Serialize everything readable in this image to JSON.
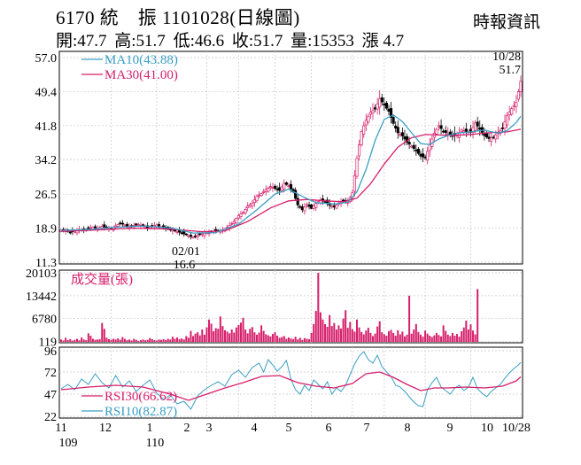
{
  "header": {
    "title": "6170 統　振 1101028(日線圖)",
    "source": "時報資訊",
    "quote": {
      "open": "開:47.7",
      "high": "高:51.7",
      "low": "低:46.6",
      "close": "收:51.7",
      "volume": "量:15353",
      "change": "漲 4.7"
    }
  },
  "chart_data": [
    {
      "type": "line",
      "panel": "price",
      "ylim": [
        11.3,
        57.0
      ],
      "yticks": [
        "57.0",
        "49.4",
        "41.8",
        "34.2",
        "26.5",
        "18.9",
        "11.3"
      ],
      "series": [
        {
          "name": "MA10(43.88)",
          "color": "#3a9fc4"
        },
        {
          "name": "MA30(41.00)",
          "color": "#d61f6b"
        }
      ],
      "annotations": {
        "high_date": "10/28",
        "high_value": "51.7",
        "low_date": "02/01",
        "low_value": "16.6"
      },
      "close": [
        [
          0,
          18.5
        ],
        [
          2,
          18.3
        ],
        [
          4,
          18.0
        ],
        [
          6,
          18.2
        ],
        [
          8,
          18.6
        ],
        [
          10,
          18.4
        ],
        [
          12,
          18.9
        ],
        [
          14,
          19.1
        ],
        [
          16,
          18.8
        ],
        [
          18,
          19.3
        ],
        [
          20,
          19.0
        ],
        [
          22,
          18.7
        ],
        [
          24,
          19.4
        ],
        [
          26,
          20.0
        ],
        [
          28,
          19.6
        ],
        [
          30,
          19.2
        ],
        [
          32,
          19.5
        ],
        [
          34,
          19.7
        ],
        [
          36,
          19.4
        ],
        [
          38,
          19.0
        ],
        [
          40,
          19.3
        ],
        [
          42,
          19.6
        ],
        [
          44,
          19.2
        ],
        [
          46,
          18.8
        ],
        [
          48,
          18.6
        ],
        [
          50,
          18.3
        ],
        [
          52,
          18.0
        ],
        [
          54,
          17.6
        ],
        [
          56,
          17.2
        ],
        [
          58,
          16.9
        ],
        [
          60,
          17.3
        ],
        [
          62,
          17.6
        ],
        [
          64,
          17.9
        ],
        [
          66,
          18.1
        ],
        [
          68,
          18.4
        ],
        [
          70,
          18.3
        ],
        [
          72,
          18.7
        ],
        [
          74,
          19.5
        ],
        [
          76,
          20.4
        ],
        [
          78,
          21.7
        ],
        [
          80,
          22.4
        ],
        [
          82,
          23.8
        ],
        [
          84,
          24.5
        ],
        [
          86,
          26.0
        ],
        [
          88,
          26.6
        ],
        [
          90,
          27.5
        ],
        [
          92,
          28.2
        ],
        [
          94,
          27.8
        ],
        [
          96,
          27.3
        ],
        [
          98,
          28.9
        ],
        [
          100,
          28.4
        ],
        [
          102,
          27.0
        ],
        [
          104,
          24.1
        ],
        [
          106,
          23.0
        ],
        [
          108,
          24.2
        ],
        [
          110,
          23.3
        ],
        [
          112,
          24.4
        ],
        [
          114,
          25.2
        ],
        [
          116,
          24.8
        ],
        [
          118,
          24.0
        ],
        [
          120,
          23.6
        ],
        [
          122,
          24.5
        ],
        [
          124,
          25.1
        ],
        [
          126,
          24.7
        ],
        [
          128,
          26.8
        ],
        [
          130,
          34.5
        ],
        [
          132,
          40.5
        ],
        [
          134,
          43.0
        ],
        [
          136,
          44.8
        ],
        [
          138,
          45.5
        ],
        [
          140,
          47.8
        ],
        [
          142,
          46.4
        ],
        [
          144,
          45.0
        ],
        [
          146,
          42.3
        ],
        [
          148,
          40.2
        ],
        [
          150,
          39.5
        ],
        [
          152,
          38.1
        ],
        [
          154,
          37.2
        ],
        [
          156,
          36.2
        ],
        [
          158,
          35.0
        ],
        [
          160,
          34.6
        ],
        [
          162,
          37.5
        ],
        [
          164,
          40.1
        ],
        [
          166,
          41.8
        ],
        [
          168,
          40.5
        ],
        [
          170,
          40.0
        ],
        [
          172,
          39.5
        ],
        [
          174,
          39.7
        ],
        [
          176,
          40.8
        ],
        [
          178,
          40.5
        ],
        [
          180,
          40.3
        ],
        [
          182,
          42.4
        ],
        [
          184,
          41.0
        ],
        [
          186,
          39.6
        ],
        [
          188,
          38.9
        ],
        [
          190,
          39.2
        ],
        [
          192,
          40.2
        ],
        [
          194,
          41.2
        ],
        [
          196,
          44.0
        ],
        [
          198,
          45.6
        ],
        [
          200,
          47.0
        ],
        [
          202,
          51.7
        ]
      ],
      "ma10": [
        [
          0,
          18.4
        ],
        [
          12,
          18.6
        ],
        [
          24,
          19.1
        ],
        [
          36,
          19.4
        ],
        [
          48,
          19.0
        ],
        [
          58,
          17.8
        ],
        [
          68,
          17.9
        ],
        [
          78,
          19.8
        ],
        [
          86,
          23.0
        ],
        [
          94,
          26.5
        ],
        [
          100,
          27.6
        ],
        [
          106,
          26.0
        ],
        [
          112,
          24.6
        ],
        [
          120,
          24.3
        ],
        [
          126,
          24.7
        ],
        [
          130,
          27.0
        ],
        [
          134,
          32.0
        ],
        [
          138,
          38.5
        ],
        [
          142,
          43.2
        ],
        [
          146,
          44.2
        ],
        [
          150,
          42.7
        ],
        [
          154,
          40.2
        ],
        [
          158,
          37.8
        ],
        [
          162,
          37.6
        ],
        [
          166,
          38.8
        ],
        [
          170,
          39.6
        ],
        [
          174,
          40.1
        ],
        [
          180,
          40.4
        ],
        [
          186,
          40.8
        ],
        [
          192,
          40.1
        ],
        [
          196,
          40.7
        ],
        [
          200,
          42.5
        ],
        [
          202,
          43.88
        ]
      ],
      "ma30": [
        [
          0,
          18.2
        ],
        [
          16,
          18.5
        ],
        [
          32,
          18.9
        ],
        [
          48,
          18.7
        ],
        [
          62,
          18.1
        ],
        [
          72,
          18.3
        ],
        [
          82,
          20.4
        ],
        [
          92,
          23.4
        ],
        [
          100,
          25.0
        ],
        [
          108,
          25.3
        ],
        [
          116,
          25.0
        ],
        [
          124,
          24.8
        ],
        [
          130,
          25.6
        ],
        [
          136,
          28.8
        ],
        [
          142,
          33.2
        ],
        [
          148,
          37.0
        ],
        [
          154,
          39.1
        ],
        [
          160,
          39.8
        ],
        [
          166,
          39.7
        ],
        [
          172,
          39.6
        ],
        [
          180,
          39.8
        ],
        [
          188,
          40.2
        ],
        [
          196,
          40.4
        ],
        [
          202,
          41.0
        ]
      ]
    },
    {
      "type": "bar",
      "panel": "volume",
      "title": "成交量(張)",
      "ylim": [
        0,
        20103
      ],
      "yticks": [
        "20103",
        "13442",
        "6780",
        "119"
      ],
      "color": "#d61f6b",
      "values": [
        700,
        400,
        1200,
        500,
        800,
        350,
        600,
        900,
        450,
        1300,
        700,
        500,
        2500,
        1800,
        900,
        600,
        700,
        800,
        5500,
        3800,
        1200,
        800,
        600,
        900,
        700,
        1000,
        600,
        1400,
        900,
        500,
        700,
        400,
        900,
        600,
        300,
        500,
        700,
        450,
        600,
        1100,
        800,
        500,
        400,
        700,
        600,
        800,
        550,
        900,
        700,
        1500,
        900,
        1300,
        800,
        1000,
        700,
        1700,
        1200,
        3200,
        1700,
        2400,
        2800,
        1900,
        3600,
        2100,
        4200,
        6500,
        5300,
        3100,
        4000,
        3800,
        7400,
        4600,
        3400,
        3000,
        2500,
        3600,
        2700,
        4200,
        4900,
        5600,
        7000,
        3600,
        2500,
        3800,
        4300,
        2800,
        2100,
        2700,
        4800,
        3200,
        2200,
        1900,
        1600,
        2300,
        2800,
        1800,
        1200,
        1400,
        1700,
        900,
        1300,
        1000,
        800,
        1500,
        700,
        1200,
        600,
        1100,
        900,
        800,
        2600,
        5200,
        9000,
        20103,
        8600,
        6500,
        5200,
        4400,
        7800,
        4600,
        5500,
        3600,
        4800,
        3900,
        6800,
        9200,
        4100,
        5800,
        3700,
        3000,
        6500,
        4200,
        2900,
        2200,
        3300,
        4100,
        2600,
        1700,
        2400,
        4500,
        6000,
        2800,
        2200,
        1800,
        3100,
        3500,
        2600,
        1800,
        3400,
        2200,
        3000,
        1600,
        2100,
        13442,
        2400,
        3600,
        5200,
        2900,
        2100,
        1500,
        3300,
        2400,
        1800,
        1400,
        1900,
        2600,
        2000,
        1600,
        4800,
        3200,
        2100,
        1700,
        2600,
        1800,
        2300,
        1500,
        3100,
        4200,
        6200,
        3600,
        5100,
        3300,
        2200,
        15353
      ]
    },
    {
      "type": "line",
      "panel": "rsi",
      "ylim": [
        22,
        96
      ],
      "yticks": [
        "96",
        "72",
        "47",
        "22"
      ],
      "series": [
        {
          "name": "RSI30(66.62)",
          "color": "#d61f6b"
        },
        {
          "name": "RSI10(82.87)",
          "color": "#3a9fc4"
        }
      ],
      "rsi10": [
        [
          0,
          53
        ],
        [
          3,
          58
        ],
        [
          6,
          52
        ],
        [
          9,
          64
        ],
        [
          12,
          58
        ],
        [
          15,
          70
        ],
        [
          18,
          60
        ],
        [
          21,
          54
        ],
        [
          24,
          68
        ],
        [
          27,
          55
        ],
        [
          30,
          62
        ],
        [
          33,
          50
        ],
        [
          36,
          57
        ],
        [
          39,
          63
        ],
        [
          42,
          48
        ],
        [
          45,
          41
        ],
        [
          48,
          46
        ],
        [
          51,
          36
        ],
        [
          54,
          39
        ],
        [
          57,
          30
        ],
        [
          60,
          45
        ],
        [
          63,
          52
        ],
        [
          66,
          57
        ],
        [
          69,
          61
        ],
        [
          72,
          56
        ],
        [
          75,
          69
        ],
        [
          78,
          74
        ],
        [
          81,
          66
        ],
        [
          84,
          77
        ],
        [
          87,
          82
        ],
        [
          89,
          72
        ],
        [
          91,
          86
        ],
        [
          93,
          80
        ],
        [
          95,
          73
        ],
        [
          97,
          78
        ],
        [
          99,
          85
        ],
        [
          101,
          64
        ],
        [
          103,
          52
        ],
        [
          105,
          47
        ],
        [
          107,
          57
        ],
        [
          109,
          51
        ],
        [
          111,
          63
        ],
        [
          113,
          58
        ],
        [
          115,
          53
        ],
        [
          117,
          61
        ],
        [
          119,
          47
        ],
        [
          121,
          54
        ],
        [
          123,
          50
        ],
        [
          125,
          57
        ],
        [
          127,
          69
        ],
        [
          129,
          81
        ],
        [
          131,
          90
        ],
        [
          133,
          95
        ],
        [
          135,
          86
        ],
        [
          137,
          82
        ],
        [
          139,
          91
        ],
        [
          141,
          78
        ],
        [
          143,
          72
        ],
        [
          145,
          67
        ],
        [
          147,
          57
        ],
        [
          149,
          55
        ],
        [
          151,
          50
        ],
        [
          153,
          44
        ],
        [
          155,
          38
        ],
        [
          157,
          34
        ],
        [
          159,
          33
        ],
        [
          161,
          52
        ],
        [
          163,
          60
        ],
        [
          165,
          66
        ],
        [
          167,
          55
        ],
        [
          169,
          51
        ],
        [
          171,
          47
        ],
        [
          173,
          54
        ],
        [
          175,
          57
        ],
        [
          177,
          51
        ],
        [
          179,
          55
        ],
        [
          181,
          66
        ],
        [
          183,
          53
        ],
        [
          185,
          48
        ],
        [
          187,
          44
        ],
        [
          189,
          50
        ],
        [
          191,
          54
        ],
        [
          193,
          58
        ],
        [
          195,
          65
        ],
        [
          197,
          71
        ],
        [
          199,
          76
        ],
        [
          201,
          80
        ],
        [
          202,
          82.87
        ]
      ],
      "rsi30": [
        [
          0,
          52
        ],
        [
          12,
          55
        ],
        [
          24,
          57
        ],
        [
          36,
          55
        ],
        [
          48,
          47
        ],
        [
          56,
          40
        ],
        [
          64,
          47
        ],
        [
          72,
          54
        ],
        [
          80,
          60
        ],
        [
          88,
          67
        ],
        [
          96,
          68
        ],
        [
          104,
          60
        ],
        [
          112,
          56
        ],
        [
          120,
          54
        ],
        [
          128,
          59
        ],
        [
          134,
          70
        ],
        [
          140,
          72
        ],
        [
          146,
          66
        ],
        [
          152,
          58
        ],
        [
          158,
          51
        ],
        [
          164,
          54
        ],
        [
          170,
          54
        ],
        [
          178,
          55
        ],
        [
          186,
          54
        ],
        [
          194,
          56
        ],
        [
          200,
          62
        ],
        [
          202,
          66.62
        ]
      ]
    }
  ],
  "x_axis": {
    "labels": [
      "11",
      "12",
      "1",
      "2",
      "3",
      "4",
      "5",
      "6",
      "7",
      "8",
      "9",
      "10",
      "10/28"
    ],
    "year_labels": [
      "109",
      "110"
    ]
  }
}
